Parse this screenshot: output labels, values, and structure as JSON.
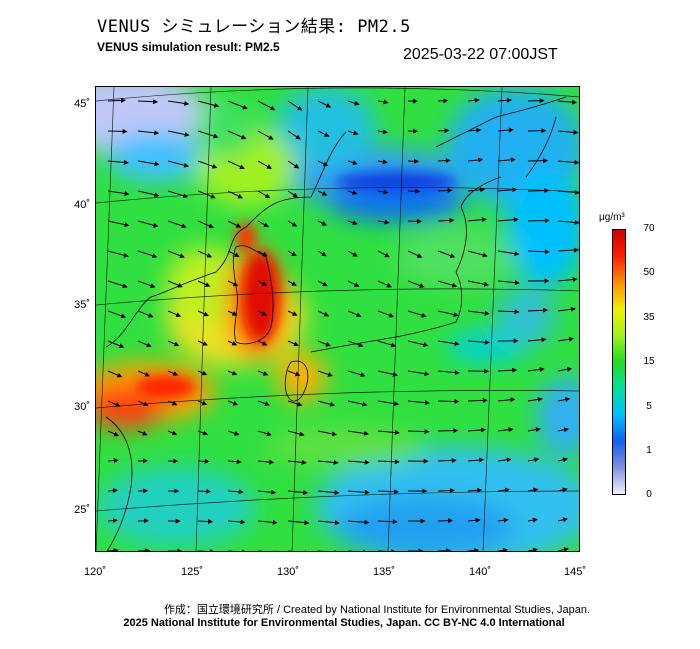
{
  "title_jp": "VENUS シミュレーション結果: PM2.5",
  "title_en": "VENUS simulation result: PM2.5",
  "timestamp": "2025-03-22 07:00JST",
  "map": {
    "lat_ticks": [
      "45˚",
      "40˚",
      "35˚",
      "30˚",
      "25˚"
    ],
    "lon_ticks": [
      "120˚",
      "125˚",
      "130˚",
      "135˚",
      "140˚",
      "145˚"
    ]
  },
  "colorbar": {
    "unit": "μg/m³",
    "labels": [
      "70",
      "50",
      "35",
      "15",
      "5",
      "1",
      "0"
    ],
    "colors": [
      "#f0f0ff",
      "#8090e0",
      "#1060f0",
      "#00c0ff",
      "#00e0a0",
      "#20e020",
      "#a0f020",
      "#f0f000",
      "#ff9000",
      "#ff2000",
      "#d00000"
    ]
  },
  "credits": {
    "line1": "作成：国立環境研究所 / Created by National Institute for Environmental Studies, Japan.",
    "line2": "2025 National Institute for Environmental Studies, Japan. CC BY-NC 4.0 International"
  }
}
